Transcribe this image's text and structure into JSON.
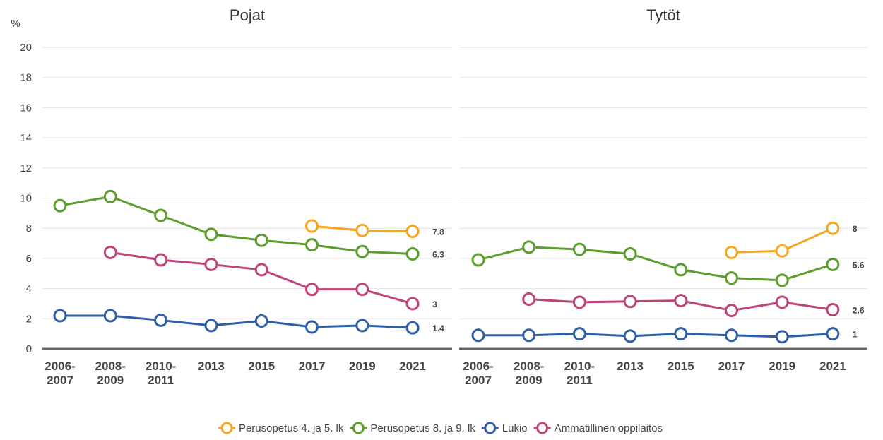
{
  "y_label": "%",
  "chart_data": [
    {
      "type": "line",
      "title": "Pojat",
      "categories": [
        "2006-2007",
        "2008-2009",
        "2010-2011",
        "2013",
        "2015",
        "2017",
        "2019",
        "2021"
      ],
      "ylim": [
        0,
        20
      ],
      "yticks": [
        0,
        2,
        4,
        6,
        8,
        10,
        12,
        14,
        16,
        18,
        20
      ],
      "grid": true,
      "series": [
        {
          "name": "Perusopetus 4. ja 5. lk",
          "color": "#f5a623",
          "values": [
            null,
            null,
            null,
            null,
            null,
            8.15,
            7.85,
            7.8
          ]
        },
        {
          "name": "Perusopetus 8. ja 9. lk",
          "color": "#5b9e2d",
          "values": [
            9.5,
            10.1,
            8.85,
            7.6,
            7.2,
            6.9,
            6.45,
            6.3
          ]
        },
        {
          "name": "Lukio",
          "color": "#2f5fa7",
          "values": [
            2.2,
            2.2,
            1.9,
            1.55,
            1.85,
            1.45,
            1.55,
            1.4
          ]
        },
        {
          "name": "Ammatillinen oppilaitos",
          "color": "#be4479",
          "values": [
            null,
            6.4,
            5.9,
            5.6,
            5.25,
            3.95,
            3.95,
            3
          ]
        }
      ]
    },
    {
      "type": "line",
      "title": "Tytöt",
      "categories": [
        "2006-2007",
        "2008-2009",
        "2010-2011",
        "2013",
        "2015",
        "2017",
        "2019",
        "2021"
      ],
      "ylim": [
        0,
        20
      ],
      "yticks": [
        0,
        2,
        4,
        6,
        8,
        10,
        12,
        14,
        16,
        18,
        20
      ],
      "grid": true,
      "series": [
        {
          "color": "#f5a623",
          "values": [
            null,
            null,
            null,
            null,
            null,
            6.4,
            6.5,
            8
          ]
        },
        {
          "color": "#5b9e2d",
          "values": [
            5.9,
            6.75,
            6.6,
            6.3,
            5.25,
            4.7,
            4.55,
            5.6
          ]
        },
        {
          "color": "#2f5fa7",
          "values": [
            0.9,
            0.9,
            1.0,
            0.85,
            1.0,
            0.9,
            0.8,
            1
          ]
        },
        {
          "color": "#be4479",
          "values": [
            null,
            3.3,
            3.1,
            3.15,
            3.2,
            2.55,
            3.1,
            2.6
          ]
        }
      ]
    }
  ]
}
